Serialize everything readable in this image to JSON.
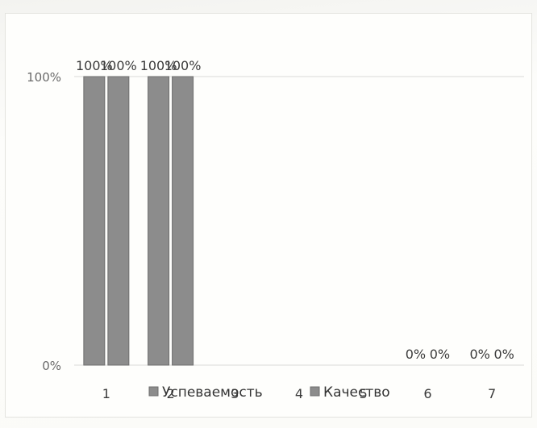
{
  "chart_data": {
    "type": "bar",
    "categories": [
      "1",
      "2",
      "3",
      "4",
      "5",
      "6",
      "7"
    ],
    "series": [
      {
        "name": "Успеваемость",
        "values": [
          1,
          1,
          null,
          null,
          null,
          0,
          0
        ],
        "labels": [
          "100%",
          "100%",
          "",
          "",
          "",
          "0%",
          "0%"
        ]
      },
      {
        "name": "Качество",
        "values": [
          1,
          1,
          null,
          null,
          null,
          0,
          0
        ],
        "labels": [
          "100%",
          "100%",
          "",
          "",
          "",
          "0%",
          "0%"
        ]
      }
    ],
    "y_ticks": [
      "0%",
      "100%"
    ],
    "ylim": [
      0,
      1
    ],
    "legend_position": "bottom",
    "colors": {
      "bar": "#8c8c8c",
      "bar_edge": "#6e6e6e",
      "grid": "#d9d9d9"
    }
  }
}
